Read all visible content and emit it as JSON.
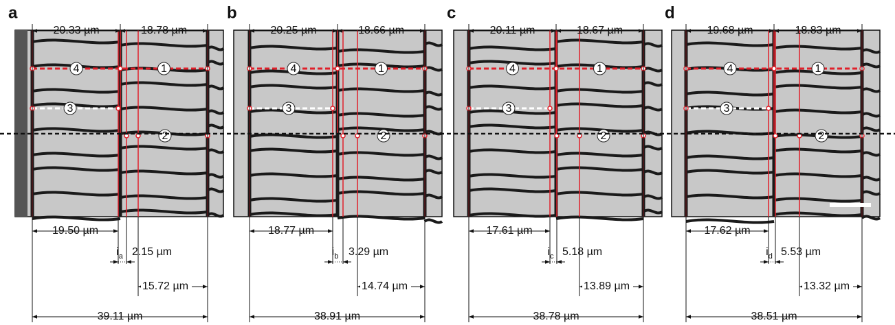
{
  "panels": [
    {
      "label": "a",
      "top": [
        "20.33 µm",
        "18.78 µm"
      ],
      "markers": [
        "4",
        "1",
        "3",
        "2"
      ],
      "bottom": {
        "left": "19.50 µm",
        "i": "i",
        "sub": "a",
        "gap": "2.15 µm",
        "right": "15.72 µm",
        "total": "39.11 µm"
      }
    },
    {
      "label": "b",
      "top": [
        "20.25 µm",
        "18.66 µm"
      ],
      "markers": [
        "4",
        "1",
        "3",
        "2"
      ],
      "bottom": {
        "left": "18.77 µm",
        "i": "i",
        "sub": "b",
        "gap": "3.29 µm",
        "right": "14.74 µm",
        "total": "38.91 µm"
      }
    },
    {
      "label": "c",
      "top": [
        "20.11 µm",
        "18.67 µm"
      ],
      "markers": [
        "4",
        "1",
        "3",
        "2"
      ],
      "bottom": {
        "left": "17.61 µm",
        "i": "i",
        "sub": "c",
        "gap": "5.18 µm",
        "right": "13.89 µm",
        "total": "38.78 µm"
      }
    },
    {
      "label": "d",
      "top": [
        "19.68 µm",
        "18.83 µm"
      ],
      "markers": [
        "4",
        "1",
        "3",
        "2"
      ],
      "bottom": {
        "left": "17.62 µm",
        "i": "i",
        "sub": "d",
        "gap": "5.53 µm",
        "right": "13.32 µm",
        "total": "38.51 µm"
      }
    }
  ]
}
